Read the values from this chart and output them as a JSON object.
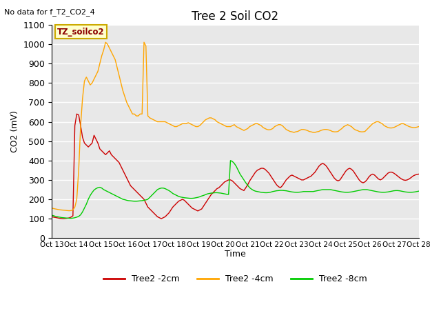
{
  "title": "Tree 2 Soil CO2",
  "subtitle": "No data for f_T2_CO2_4",
  "xlabel": "Time",
  "ylabel": "CO2 (mV)",
  "ylim": [
    0,
    1100
  ],
  "legend_label": "TZ_soilco2",
  "x_tick_labels": [
    "Oct 13",
    "Oct 14",
    "Oct 15",
    "Oct 16",
    "Oct 17",
    "Oct 18",
    "Oct 19",
    "Oct 20",
    "Oct 21",
    "Oct 22",
    "Oct 23",
    "Oct 24",
    "Oct 25",
    "Oct 26",
    "Oct 27",
    "Oct 28"
  ],
  "bg_color": "#e8e8e8",
  "line_colors": {
    "2cm": "#cc0000",
    "4cm": "#ffa500",
    "8cm": "#00cc00"
  },
  "series_2cm": [
    110,
    108,
    106,
    104,
    102,
    101,
    100,
    101,
    102,
    104,
    108,
    115,
    580,
    640,
    635,
    580,
    520,
    490,
    480,
    470,
    480,
    490,
    530,
    510,
    490,
    460,
    450,
    440,
    430,
    440,
    450,
    430,
    420,
    410,
    400,
    390,
    370,
    350,
    330,
    310,
    290,
    270,
    260,
    250,
    240,
    230,
    220,
    210,
    200,
    180,
    160,
    150,
    140,
    130,
    120,
    110,
    105,
    100,
    105,
    110,
    120,
    130,
    145,
    160,
    170,
    180,
    190,
    195,
    200,
    195,
    185,
    175,
    165,
    155,
    150,
    145,
    140,
    145,
    150,
    165,
    180,
    195,
    210,
    225,
    235,
    245,
    255,
    260,
    270,
    280,
    290,
    295,
    300,
    300,
    295,
    285,
    275,
    265,
    255,
    250,
    245,
    260,
    275,
    295,
    310,
    325,
    340,
    350,
    355,
    360,
    360,
    355,
    345,
    335,
    320,
    305,
    290,
    275,
    265,
    260,
    270,
    285,
    300,
    310,
    320,
    325,
    320,
    315,
    310,
    305,
    300,
    300,
    305,
    310,
    315,
    320,
    330,
    340,
    355,
    370,
    380,
    385,
    380,
    370,
    355,
    340,
    325,
    310,
    300,
    295,
    300,
    315,
    330,
    345,
    355,
    360,
    355,
    345,
    330,
    315,
    300,
    290,
    285,
    290,
    300,
    315,
    325,
    330,
    325,
    315,
    305,
    300,
    305,
    315,
    325,
    335,
    340,
    340,
    335,
    328,
    320,
    312,
    305,
    300,
    298,
    300,
    305,
    312,
    320,
    325,
    328,
    330
  ],
  "series_4cm": [
    155,
    152,
    150,
    148,
    146,
    145,
    144,
    143,
    142,
    141,
    142,
    145,
    160,
    200,
    350,
    580,
    720,
    810,
    830,
    810,
    790,
    800,
    820,
    840,
    860,
    900,
    940,
    970,
    1010,
    1000,
    980,
    960,
    940,
    920,
    880,
    840,
    800,
    760,
    730,
    700,
    680,
    660,
    640,
    640,
    630,
    630,
    640,
    640,
    1010,
    990,
    630,
    620,
    615,
    610,
    605,
    600,
    600,
    600,
    600,
    600,
    595,
    590,
    585,
    580,
    575,
    575,
    580,
    585,
    590,
    590,
    590,
    595,
    590,
    585,
    580,
    575,
    575,
    580,
    590,
    600,
    610,
    615,
    620,
    620,
    615,
    610,
    600,
    595,
    590,
    585,
    580,
    575,
    575,
    575,
    580,
    585,
    575,
    570,
    565,
    560,
    555,
    560,
    565,
    575,
    580,
    585,
    590,
    590,
    585,
    580,
    570,
    565,
    560,
    558,
    560,
    565,
    575,
    580,
    585,
    585,
    580,
    570,
    560,
    555,
    550,
    548,
    545,
    548,
    550,
    555,
    560,
    560,
    558,
    555,
    550,
    548,
    545,
    545,
    548,
    550,
    555,
    558,
    560,
    560,
    558,
    555,
    550,
    548,
    548,
    550,
    558,
    565,
    575,
    580,
    585,
    580,
    575,
    565,
    558,
    555,
    550,
    548,
    548,
    550,
    560,
    570,
    580,
    590,
    595,
    600,
    600,
    595,
    590,
    580,
    575,
    570,
    568,
    568,
    570,
    575,
    580,
    585,
    590,
    590,
    585,
    580,
    575,
    572,
    570,
    570,
    572,
    575
  ],
  "series_8cm": [
    118,
    115,
    112,
    110,
    108,
    106,
    105,
    104,
    103,
    102,
    102,
    103,
    105,
    108,
    112,
    120,
    135,
    155,
    175,
    200,
    220,
    235,
    248,
    255,
    260,
    262,
    258,
    250,
    245,
    240,
    235,
    230,
    225,
    220,
    215,
    210,
    205,
    200,
    198,
    195,
    193,
    192,
    191,
    190,
    190,
    191,
    192,
    193,
    195,
    197,
    200,
    210,
    220,
    230,
    240,
    250,
    255,
    258,
    258,
    255,
    250,
    245,
    238,
    230,
    225,
    220,
    215,
    212,
    210,
    208,
    207,
    206,
    205,
    205,
    206,
    208,
    210,
    213,
    217,
    220,
    224,
    228,
    230,
    232,
    233,
    234,
    234,
    233,
    232,
    230,
    228,
    226,
    225,
    400,
    395,
    385,
    370,
    350,
    330,
    315,
    300,
    285,
    272,
    260,
    252,
    246,
    242,
    240,
    238,
    236,
    235,
    234,
    234,
    235,
    237,
    240,
    242,
    244,
    245,
    246,
    246,
    245,
    244,
    242,
    240,
    238,
    237,
    236,
    236,
    237,
    238,
    240,
    240,
    240,
    240,
    240,
    240,
    242,
    244,
    246,
    248,
    250,
    250,
    250,
    250,
    250,
    248,
    246,
    244,
    242,
    240,
    238,
    237,
    236,
    236,
    237,
    238,
    240,
    242,
    244,
    246,
    248,
    250,
    250,
    250,
    248,
    246,
    244,
    242,
    240,
    238,
    237,
    236,
    236,
    237,
    238,
    240,
    242,
    244,
    245,
    245,
    244,
    242,
    240,
    238,
    237,
    236,
    236,
    237,
    238,
    240,
    242
  ]
}
